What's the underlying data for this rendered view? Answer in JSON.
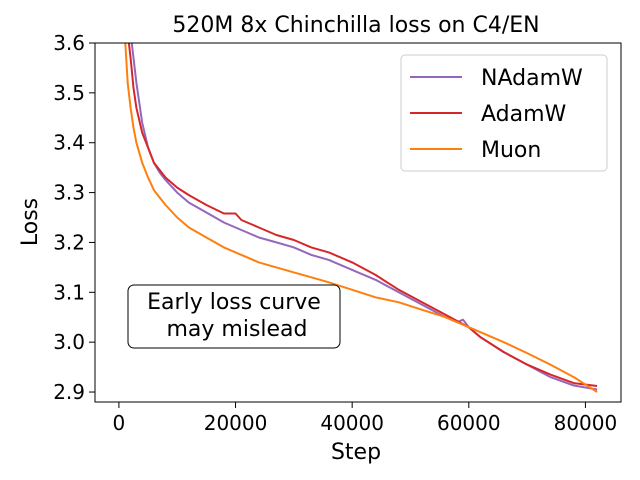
{
  "chart_data": {
    "type": "line",
    "title": "520M 8x Chinchilla loss on C4/EN",
    "xlabel": "Step",
    "ylabel": "Loss",
    "xlim": [
      -4100,
      86100
    ],
    "ylim": [
      2.88,
      3.6
    ],
    "xticks": [
      0,
      20000,
      40000,
      60000,
      80000
    ],
    "xtick_labels": [
      "0",
      "20000",
      "40000",
      "60000",
      "80000"
    ],
    "yticks": [
      2.9,
      3.0,
      3.1,
      3.2,
      3.3,
      3.4,
      3.5,
      3.6
    ],
    "ytick_labels": [
      "2.9",
      "3.0",
      "3.1",
      "3.2",
      "3.3",
      "3.4",
      "3.5",
      "3.6"
    ],
    "grid": false,
    "legend_position": "top-right",
    "annotation": {
      "lines": [
        "Early loss curve",
        "may mislead"
      ],
      "x": 14000,
      "y": 3.055
    },
    "series": [
      {
        "name": "NAdamW",
        "color": "#9467bd",
        "x": [
          2000,
          2500,
          3000,
          4000,
          5000,
          6000,
          7000,
          8000,
          10000,
          12000,
          15000,
          18000,
          21000,
          24000,
          27000,
          30000,
          33000,
          36000,
          40000,
          44000,
          48000,
          52000,
          56000,
          58000,
          59000,
          60000,
          62000,
          66000,
          70000,
          74000,
          78000,
          82000
        ],
        "y": [
          3.62,
          3.57,
          3.52,
          3.44,
          3.39,
          3.36,
          3.34,
          3.325,
          3.3,
          3.28,
          3.26,
          3.24,
          3.225,
          3.21,
          3.2,
          3.19,
          3.175,
          3.165,
          3.145,
          3.125,
          3.1,
          3.075,
          3.05,
          3.04,
          3.045,
          3.03,
          3.01,
          2.98,
          2.955,
          2.93,
          2.913,
          2.905
        ]
      },
      {
        "name": "AdamW",
        "color": "#d62728",
        "x": [
          1500,
          2000,
          2500,
          3000,
          4000,
          5000,
          6000,
          7000,
          8000,
          10000,
          12000,
          15000,
          18000,
          20000,
          21000,
          24000,
          27000,
          30000,
          33000,
          36000,
          40000,
          44000,
          48000,
          52000,
          56000,
          60000,
          62000,
          66000,
          70000,
          74000,
          78000,
          82000
        ],
        "y": [
          3.62,
          3.57,
          3.51,
          3.47,
          3.42,
          3.39,
          3.36,
          3.345,
          3.33,
          3.31,
          3.295,
          3.275,
          3.258,
          3.258,
          3.245,
          3.23,
          3.215,
          3.205,
          3.19,
          3.18,
          3.16,
          3.135,
          3.105,
          3.08,
          3.055,
          3.03,
          3.01,
          2.98,
          2.955,
          2.935,
          2.918,
          2.912
        ]
      },
      {
        "name": "Muon",
        "color": "#ff7f0e",
        "x": [
          1000,
          1500,
          2000,
          2500,
          3000,
          4000,
          5000,
          6000,
          7000,
          8000,
          10000,
          12000,
          15000,
          18000,
          21000,
          24000,
          27000,
          30000,
          33000,
          36000,
          40000,
          44000,
          48000,
          52000,
          56000,
          60000,
          62000,
          66000,
          70000,
          74000,
          78000,
          82000
        ],
        "y": [
          3.62,
          3.52,
          3.47,
          3.43,
          3.4,
          3.36,
          3.33,
          3.305,
          3.29,
          3.275,
          3.25,
          3.23,
          3.21,
          3.19,
          3.175,
          3.16,
          3.15,
          3.14,
          3.13,
          3.12,
          3.105,
          3.09,
          3.08,
          3.065,
          3.05,
          3.03,
          3.02,
          3.0,
          2.978,
          2.955,
          2.93,
          2.9
        ]
      }
    ]
  }
}
